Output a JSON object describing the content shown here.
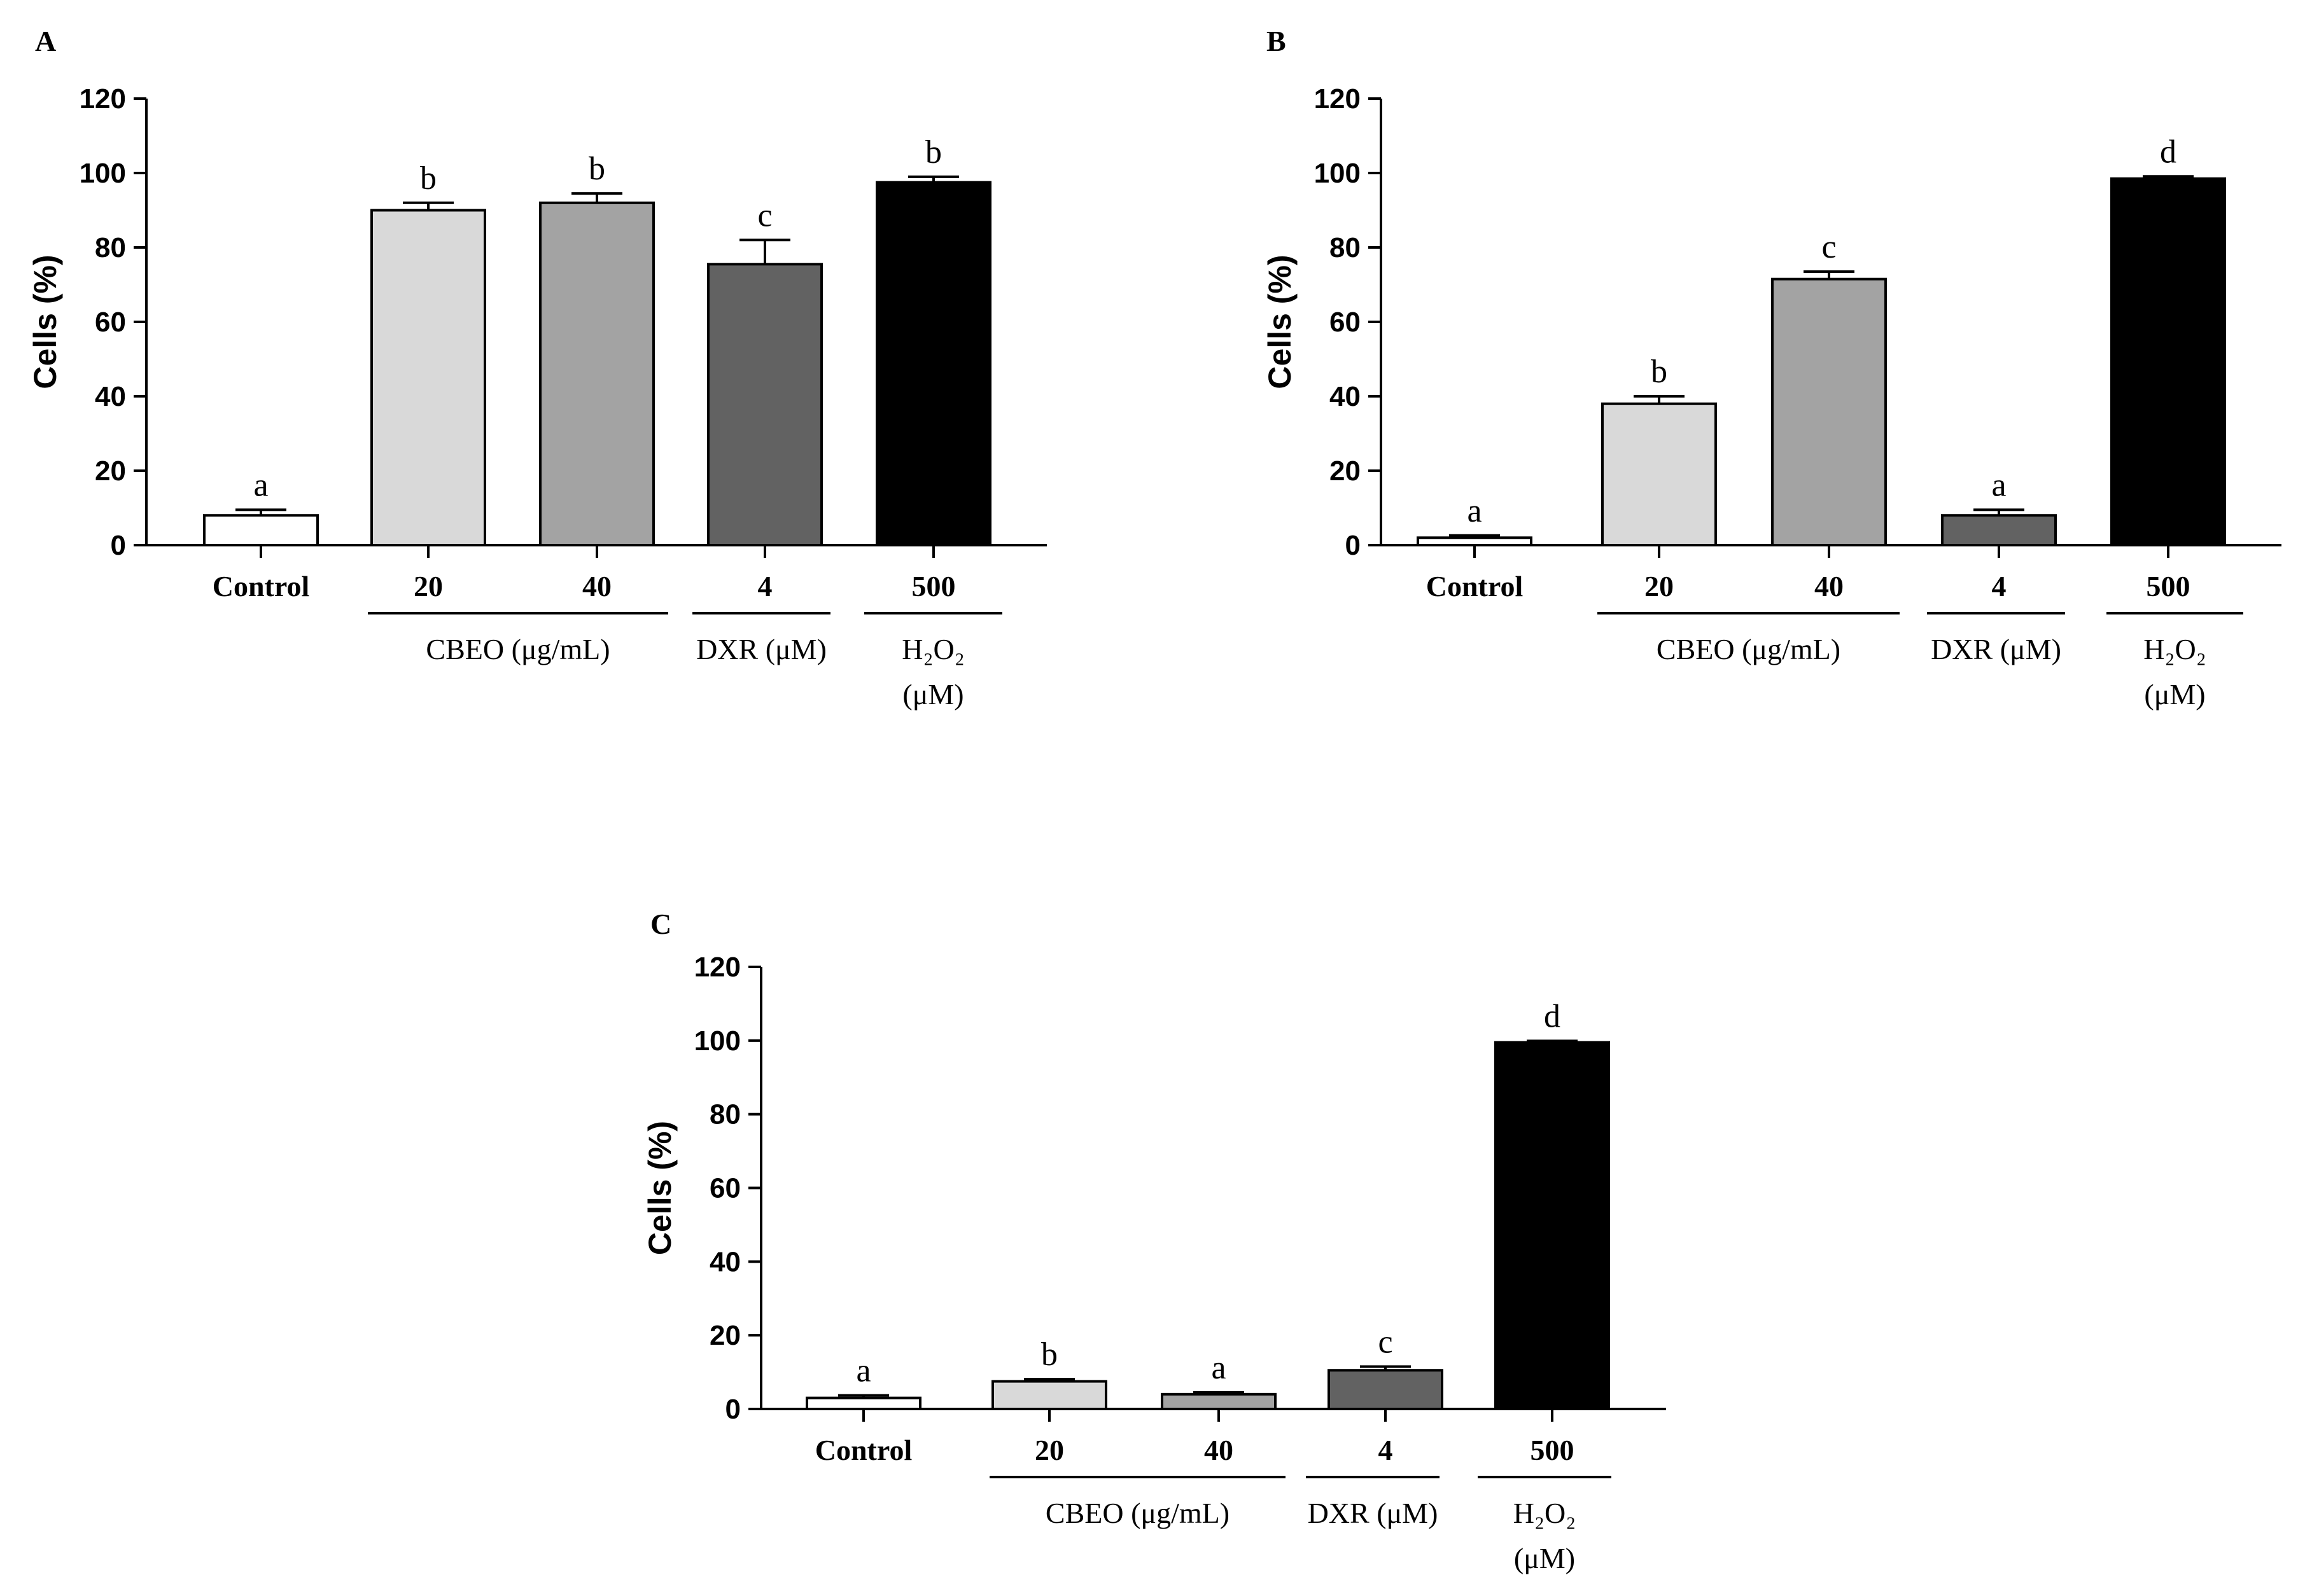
{
  "chart_data": [
    {
      "type": "bar",
      "panel": "A",
      "ylabel": "Cells (%)",
      "ylim": [
        0,
        120
      ],
      "yticks": [
        0,
        20,
        40,
        60,
        80,
        100,
        120
      ],
      "categories": [
        "Control",
        "20",
        "40",
        "4",
        "500"
      ],
      "values": [
        8,
        90,
        92,
        75.5,
        97.5
      ],
      "errors": [
        1.5,
        2,
        2.5,
        6.5,
        1.5
      ],
      "significance": [
        "a",
        "b",
        "b",
        "c",
        "b"
      ],
      "colors": [
        "#ffffff",
        "#d9d9d9",
        "#a3a3a3",
        "#626262",
        "#000000"
      ],
      "groups": [
        {
          "label": "CBEO (μg/mL)",
          "members": [
            1,
            2
          ]
        },
        {
          "label": "DXR (μM)",
          "members": [
            3
          ]
        },
        {
          "label": "H₂O₂",
          "label2": "(μM)",
          "members": [
            4
          ]
        }
      ]
    },
    {
      "type": "bar",
      "panel": "B",
      "ylabel": "Cells (%)",
      "ylim": [
        0,
        120
      ],
      "yticks": [
        0,
        20,
        40,
        60,
        80,
        100,
        120
      ],
      "categories": [
        "Control",
        "20",
        "40",
        "4",
        "500"
      ],
      "values": [
        2,
        38,
        71.5,
        8,
        98.5
      ],
      "errors": [
        0.6,
        2,
        2,
        1.5,
        0.6
      ],
      "significance": [
        "a",
        "b",
        "c",
        "a",
        "d"
      ],
      "colors": [
        "#ffffff",
        "#d9d9d9",
        "#a3a3a3",
        "#626262",
        "#000000"
      ],
      "groups": [
        {
          "label": "CBEO (μg/mL)",
          "members": [
            1,
            2
          ]
        },
        {
          "label": "DXR (μM)",
          "members": [
            3
          ]
        },
        {
          "label": "H₂O₂",
          "label2": "(μM)",
          "members": [
            4
          ]
        }
      ]
    },
    {
      "type": "bar",
      "panel": "C",
      "ylabel": "Cells (%)",
      "ylim": [
        0,
        120
      ],
      "yticks": [
        0,
        20,
        40,
        60,
        80,
        100,
        120
      ],
      "categories": [
        "Control",
        "20",
        "40",
        "4",
        "500"
      ],
      "values": [
        3,
        7.5,
        4,
        10.5,
        99.5
      ],
      "errors": [
        0.7,
        0.6,
        0.5,
        1,
        0.4
      ],
      "significance": [
        "a",
        "b",
        "a",
        "c",
        "d"
      ],
      "colors": [
        "#ffffff",
        "#d9d9d9",
        "#a3a3a3",
        "#626262",
        "#000000"
      ],
      "groups": [
        {
          "label": "CBEO (μg/mL)",
          "members": [
            1,
            2
          ]
        },
        {
          "label": "DXR (μM)",
          "members": [
            3
          ]
        },
        {
          "label": "H₂O₂",
          "label2": "(μM)",
          "members": [
            4
          ]
        }
      ]
    }
  ]
}
